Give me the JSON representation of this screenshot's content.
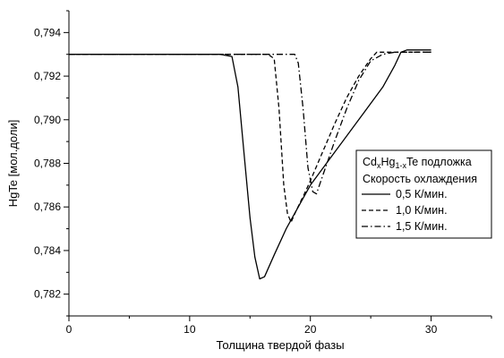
{
  "chart_data": {
    "type": "line",
    "xlabel": "Толщина твердой фазы",
    "ylabel": "HgTe [мол.доли]",
    "xlim": [
      0,
      35
    ],
    "ylim": [
      0.781,
      0.795
    ],
    "x_ticks": [
      0,
      10,
      20,
      30
    ],
    "y_ticks": [
      0.782,
      0.784,
      0.786,
      0.788,
      0.79,
      0.792,
      0.794
    ],
    "y_tick_labels": [
      "0,782",
      "0,784",
      "0,786",
      "0,788",
      "0,790",
      "0,792",
      "0,794"
    ],
    "grid": false,
    "legend": {
      "title_parts": [
        "Cd",
        "x",
        "Hg",
        "1-x",
        "Te подложка"
      ],
      "subtitle": "Скорость охлаждения",
      "placement": "right"
    },
    "series": [
      {
        "name": "0,5 К/мин.",
        "dash": "solid",
        "points": [
          [
            0,
            0.793
          ],
          [
            12.5,
            0.793
          ],
          [
            13.5,
            0.7929
          ],
          [
            14.0,
            0.7915
          ],
          [
            14.5,
            0.7885
          ],
          [
            15.0,
            0.7855
          ],
          [
            15.4,
            0.7837
          ],
          [
            15.8,
            0.7827
          ],
          [
            16.2,
            0.7828
          ],
          [
            17.0,
            0.7838
          ],
          [
            18.0,
            0.785
          ],
          [
            19.0,
            0.786
          ],
          [
            20.0,
            0.787
          ],
          [
            22.0,
            0.7885
          ],
          [
            24.0,
            0.79
          ],
          [
            26.0,
            0.7915
          ],
          [
            27.0,
            0.7925
          ],
          [
            27.5,
            0.7931
          ],
          [
            28.0,
            0.7932
          ],
          [
            30.0,
            0.7932
          ]
        ]
      },
      {
        "name": "1,0 К/мин.",
        "dash": "dashed",
        "points": [
          [
            0,
            0.793
          ],
          [
            16.5,
            0.793
          ],
          [
            17.0,
            0.7928
          ],
          [
            17.4,
            0.7905
          ],
          [
            17.8,
            0.787
          ],
          [
            18.1,
            0.7857
          ],
          [
            18.4,
            0.7853
          ],
          [
            18.8,
            0.7858
          ],
          [
            19.5,
            0.7866
          ],
          [
            20.0,
            0.7872
          ],
          [
            21.0,
            0.7885
          ],
          [
            22.0,
            0.7898
          ],
          [
            23.0,
            0.791
          ],
          [
            24.0,
            0.792
          ],
          [
            25.0,
            0.7928
          ],
          [
            25.5,
            0.7931
          ],
          [
            26.0,
            0.7931
          ],
          [
            30.0,
            0.7931
          ]
        ]
      },
      {
        "name": "1,5 К/мин.",
        "dash": "dashdot",
        "points": [
          [
            0,
            0.793
          ],
          [
            18.7,
            0.793
          ],
          [
            19.0,
            0.7926
          ],
          [
            19.4,
            0.7905
          ],
          [
            19.8,
            0.7878
          ],
          [
            20.2,
            0.7867
          ],
          [
            20.5,
            0.7866
          ],
          [
            21.0,
            0.7874
          ],
          [
            22.0,
            0.789
          ],
          [
            23.0,
            0.7905
          ],
          [
            24.0,
            0.7918
          ],
          [
            25.0,
            0.7927
          ],
          [
            26.0,
            0.793
          ],
          [
            27.0,
            0.7931
          ],
          [
            30.0,
            0.7931
          ]
        ]
      }
    ]
  }
}
